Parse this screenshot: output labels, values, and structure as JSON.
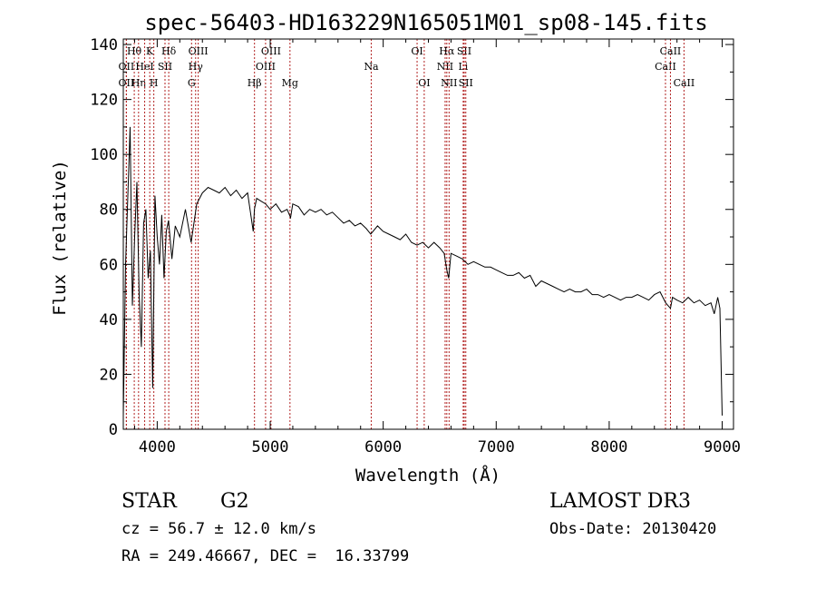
{
  "chart_data": {
    "type": "line",
    "title": "spec-56403-HD163229N165051M01_sp08-145.fits",
    "xlabel": "Wavelength (Å)",
    "ylabel": "Flux (relative)",
    "xlim": [
      3700,
      9100
    ],
    "ylim": [
      0,
      142
    ],
    "xticks": [
      {
        "value": 4000,
        "label": "4000"
      },
      {
        "value": 5000,
        "label": "5000"
      },
      {
        "value": 6000,
        "label": "6000"
      },
      {
        "value": 7000,
        "label": "7000"
      },
      {
        "value": 8000,
        "label": "8000"
      },
      {
        "value": 9000,
        "label": "9000"
      }
    ],
    "yticks": [
      {
        "value": 0,
        "label": "0"
      },
      {
        "value": 20,
        "label": "20"
      },
      {
        "value": 40,
        "label": "40"
      },
      {
        "value": 60,
        "label": "60"
      },
      {
        "value": 80,
        "label": "80"
      },
      {
        "value": 100,
        "label": "100"
      },
      {
        "value": 120,
        "label": "120"
      },
      {
        "value": 140,
        "label": "140"
      }
    ],
    "series": [
      {
        "name": "spectrum",
        "x": [
          3700,
          3720,
          3740,
          3760,
          3780,
          3800,
          3820,
          3840,
          3860,
          3880,
          3900,
          3920,
          3940,
          3960,
          3980,
          4000,
          4020,
          4040,
          4060,
          4080,
          4100,
          4130,
          4160,
          4200,
          4250,
          4300,
          4350,
          4400,
          4450,
          4500,
          4550,
          4600,
          4650,
          4700,
          4750,
          4800,
          4850,
          4860,
          4880,
          4920,
          4960,
          5000,
          5050,
          5100,
          5150,
          5180,
          5200,
          5250,
          5300,
          5350,
          5400,
          5450,
          5500,
          5550,
          5600,
          5650,
          5700,
          5750,
          5800,
          5850,
          5890,
          5950,
          6000,
          6050,
          6100,
          6150,
          6200,
          6250,
          6300,
          6350,
          6400,
          6450,
          6500,
          6540,
          6563,
          6580,
          6600,
          6650,
          6700,
          6750,
          6800,
          6850,
          6900,
          6950,
          7000,
          7050,
          7100,
          7150,
          7200,
          7250,
          7300,
          7350,
          7400,
          7450,
          7500,
          7550,
          7600,
          7650,
          7700,
          7750,
          7800,
          7850,
          7900,
          7950,
          8000,
          8050,
          8100,
          8150,
          8200,
          8250,
          8300,
          8350,
          8400,
          8450,
          8500,
          8542,
          8560,
          8600,
          8650,
          8700,
          8750,
          8800,
          8850,
          8900,
          8930,
          8960,
          8980,
          9000
        ],
        "y": [
          5,
          60,
          85,
          110,
          45,
          70,
          90,
          50,
          30,
          75,
          80,
          55,
          65,
          15,
          85,
          70,
          60,
          78,
          55,
          72,
          76,
          62,
          74,
          70,
          80,
          68,
          82,
          86,
          88,
          87,
          86,
          88,
          85,
          87,
          84,
          86,
          72,
          80,
          84,
          83,
          82,
          80,
          82,
          79,
          80,
          77,
          82,
          81,
          78,
          80,
          79,
          80,
          78,
          79,
          77,
          75,
          76,
          74,
          75,
          73,
          71,
          74,
          72,
          71,
          70,
          69,
          71,
          68,
          67,
          68,
          66,
          68,
          66,
          64,
          58,
          55,
          64,
          63,
          62,
          60,
          61,
          60,
          59,
          59,
          58,
          57,
          56,
          56,
          57,
          55,
          56,
          52,
          54,
          53,
          52,
          51,
          50,
          51,
          50,
          50,
          51,
          49,
          49,
          48,
          49,
          48,
          47,
          48,
          48,
          49,
          48,
          47,
          49,
          50,
          46,
          44,
          48,
          47,
          46,
          48,
          46,
          47,
          45,
          46,
          42,
          48,
          44,
          5
        ]
      }
    ],
    "lines": [
      {
        "wl": 3797,
        "label": "Hθ",
        "row": 1
      },
      {
        "wl": 3727,
        "label": "OII",
        "row": 2
      },
      {
        "wl": 3727,
        "label": "OII",
        "row": 3
      },
      {
        "wl": 3835,
        "label": "Hη",
        "row": 3
      },
      {
        "wl": 3889,
        "label": "HeI",
        "row": 2
      },
      {
        "wl": 3934,
        "label": "K",
        "row": 1
      },
      {
        "wl": 3970,
        "label": "H",
        "row": 3
      },
      {
        "wl": 4069,
        "label": "SII",
        "row": 2
      },
      {
        "wl": 4102,
        "label": "Hδ",
        "row": 1
      },
      {
        "wl": 4304,
        "label": "G",
        "row": 3
      },
      {
        "wl": 4340,
        "label": "Hγ",
        "row": 2
      },
      {
        "wl": 4363,
        "label": "OIII",
        "row": 1
      },
      {
        "wl": 4861,
        "label": "Hβ",
        "row": 3
      },
      {
        "wl": 4959,
        "label": "OIII",
        "row": 2
      },
      {
        "wl": 5007,
        "label": "OIII",
        "row": 1
      },
      {
        "wl": 5175,
        "label": "Mg",
        "row": 3
      },
      {
        "wl": 5894,
        "label": "Na",
        "row": 2
      },
      {
        "wl": 6300,
        "label": "OI",
        "row": 1
      },
      {
        "wl": 6363,
        "label": "OI",
        "row": 3
      },
      {
        "wl": 6548,
        "label": "NII",
        "row": 2
      },
      {
        "wl": 6563,
        "label": "Hα",
        "row": 1
      },
      {
        "wl": 6583,
        "label": "NII",
        "row": 3
      },
      {
        "wl": 6708,
        "label": "Li",
        "row": 2
      },
      {
        "wl": 6717,
        "label": "SII",
        "row": 1
      },
      {
        "wl": 6731,
        "label": "SII",
        "row": 3
      },
      {
        "wl": 8498,
        "label": "CaII",
        "row": 2
      },
      {
        "wl": 8542,
        "label": "CaII",
        "row": 1
      },
      {
        "wl": 8662,
        "label": "CaII",
        "row": 3
      }
    ]
  },
  "info": {
    "class_label": "STAR",
    "subclass": "G2",
    "survey": "LAMOST DR3",
    "cz": "cz = 56.7 ± 12.0 km/s",
    "obs_date": "Obs-Date: 20130420",
    "coords": "RA = 249.46667, DEC =  16.33799"
  }
}
